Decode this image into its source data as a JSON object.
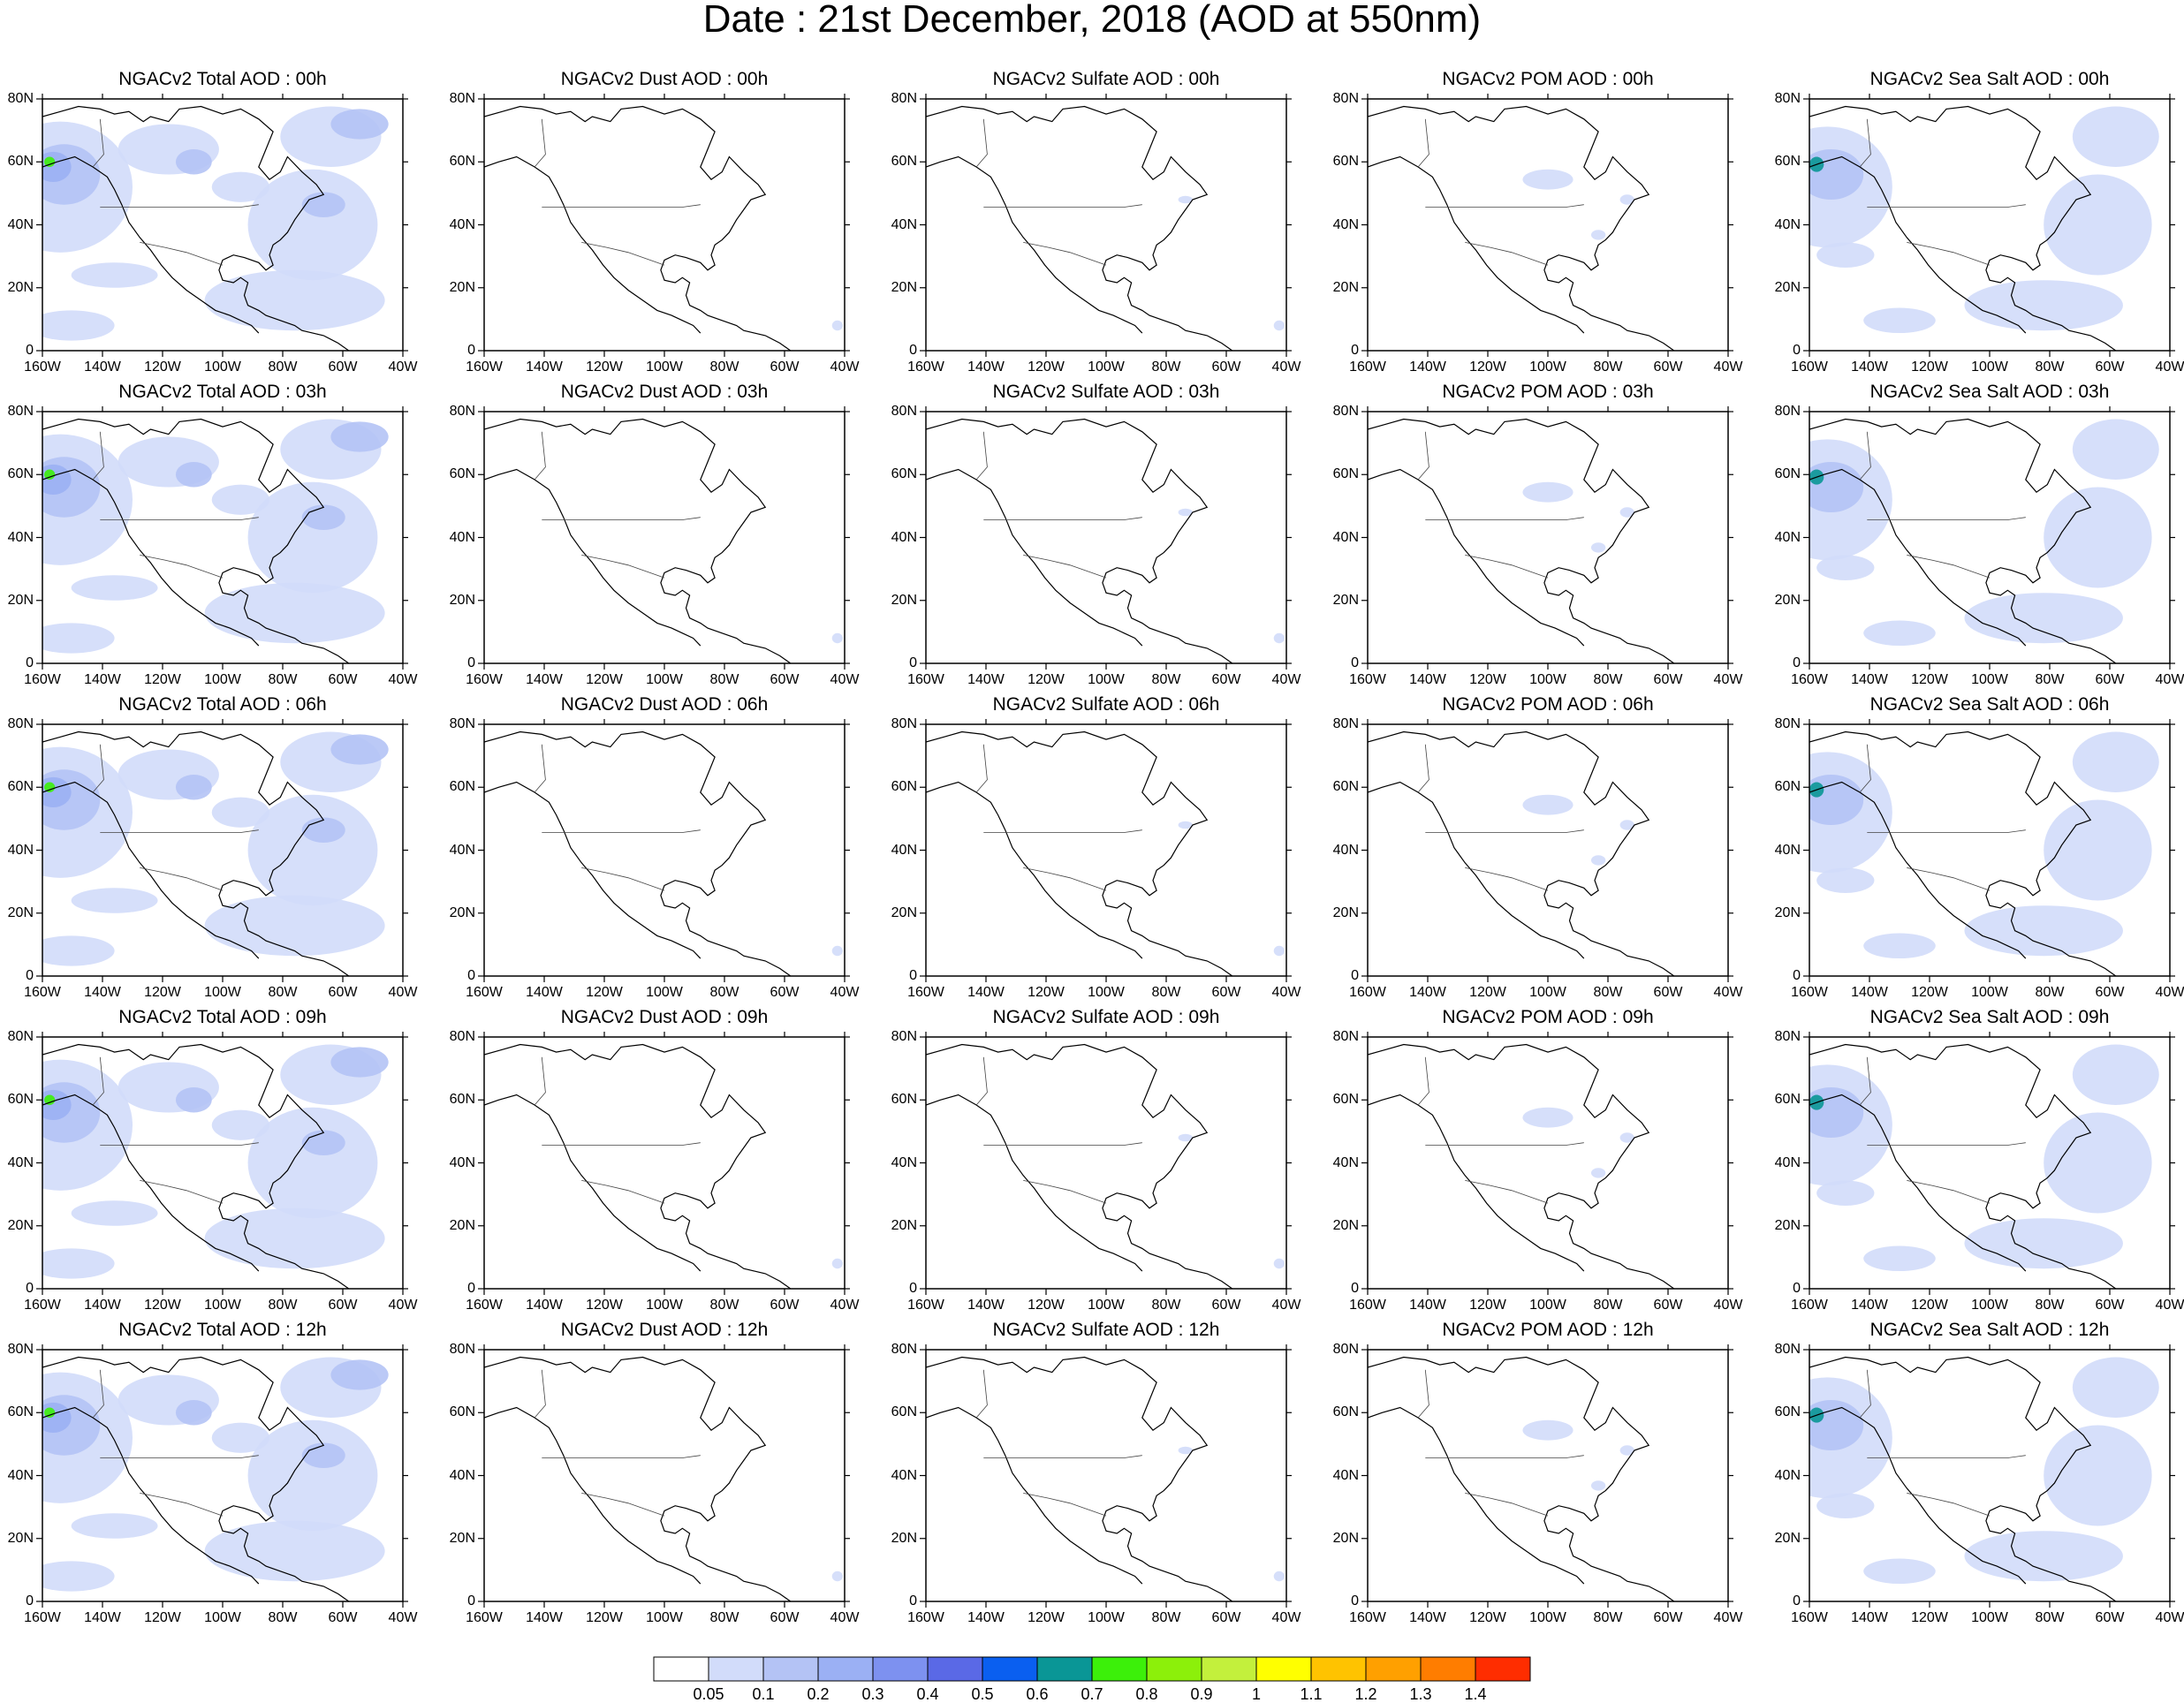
{
  "title": "Date : 21st December, 2018 (AOD at 550nm)",
  "x_ticks": [
    "160W",
    "140W",
    "120W",
    "100W",
    "80W",
    "60W",
    "40W"
  ],
  "y_ticks": [
    "80N",
    "60N",
    "40N",
    "20N",
    "0"
  ],
  "colorbar": {
    "labels": [
      "0.05",
      "0.1",
      "0.2",
      "0.3",
      "0.4",
      "0.5",
      "0.6",
      "0.7",
      "0.8",
      "0.9",
      "1",
      "1.1",
      "1.2",
      "1.3",
      "1.4"
    ],
    "colors": [
      "#ffffff",
      "#d2dcfa",
      "#b4c3f5",
      "#9bb0f4",
      "#7d91f0",
      "#5a69e6",
      "#0a5ff0",
      "#0a9696",
      "#3cf00a",
      "#8cf00a",
      "#c3f03c",
      "#ffff00",
      "#ffc300",
      "#ffa000",
      "#ff7d00",
      "#ff2d00"
    ]
  },
  "panels": [
    [
      {
        "title": "NGACv2 Total AOD : 00h",
        "species": "total"
      },
      {
        "title": "NGACv2 Dust AOD : 00h",
        "species": "dust"
      },
      {
        "title": "NGACv2 Sulfate AOD : 00h",
        "species": "sulfate"
      },
      {
        "title": "NGACv2 POM AOD : 00h",
        "species": "pom"
      },
      {
        "title": "NGACv2 Sea Salt AOD : 00h",
        "species": "seasalt"
      }
    ],
    [
      {
        "title": "NGACv2 Total AOD : 03h",
        "species": "total"
      },
      {
        "title": "NGACv2 Dust AOD : 03h",
        "species": "dust"
      },
      {
        "title": "NGACv2 Sulfate AOD : 03h",
        "species": "sulfate"
      },
      {
        "title": "NGACv2 POM AOD : 03h",
        "species": "pom"
      },
      {
        "title": "NGACv2 Sea Salt AOD : 03h",
        "species": "seasalt"
      }
    ],
    [
      {
        "title": "NGACv2 Total AOD : 06h",
        "species": "total"
      },
      {
        "title": "NGACv2 Dust AOD : 06h",
        "species": "dust"
      },
      {
        "title": "NGACv2 Sulfate AOD : 06h",
        "species": "sulfate"
      },
      {
        "title": "NGACv2 POM AOD : 06h",
        "species": "pom"
      },
      {
        "title": "NGACv2 Sea Salt AOD : 06h",
        "species": "seasalt"
      }
    ],
    [
      {
        "title": "NGACv2 Total AOD : 09h",
        "species": "total"
      },
      {
        "title": "NGACv2 Dust AOD : 09h",
        "species": "dust"
      },
      {
        "title": "NGACv2 Sulfate AOD : 09h",
        "species": "sulfate"
      },
      {
        "title": "NGACv2 POM AOD : 09h",
        "species": "pom"
      },
      {
        "title": "NGACv2 Sea Salt  AOD : 09h",
        "species": "seasalt"
      }
    ],
    [
      {
        "title": "NGACv2 Total AOD  : 12h",
        "species": "total"
      },
      {
        "title": "NGACv2 Dust AOD : 12h",
        "species": "dust"
      },
      {
        "title": "NGACv2 Sulfate AOD : 12h",
        "species": "sulfate"
      },
      {
        "title": "NGACv2 POM  AOD : 12h",
        "species": "pom"
      },
      {
        "title": "NGACv2 Sea Salt  AOD : 12h",
        "species": "seasalt"
      }
    ]
  ]
}
